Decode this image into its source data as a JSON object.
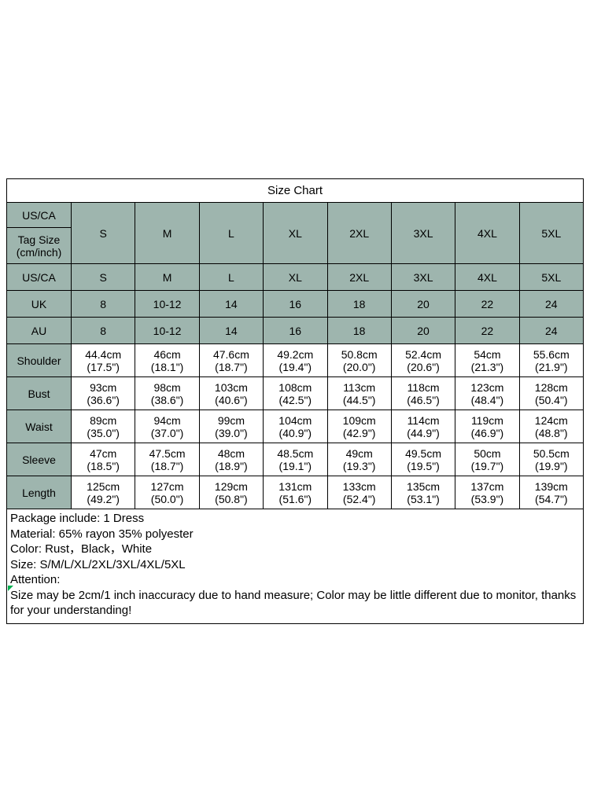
{
  "page": {
    "title": "Size Chart"
  },
  "size_chart": {
    "header": {
      "region_label": "US/CA",
      "tag_size_label": "Tag Size\n(cm/inch)",
      "sizes": [
        "S",
        "M",
        "L",
        "XL",
        "2XL",
        "3XL",
        "4XL",
        "5XL"
      ]
    },
    "rows": [
      {
        "label": "US/CA",
        "shaded": true,
        "values": [
          "S",
          "M",
          "L",
          "XL",
          "2XL",
          "3XL",
          "4XL",
          "5XL"
        ]
      },
      {
        "label": "UK",
        "shaded": true,
        "values": [
          "8",
          "10-12",
          "14",
          "16",
          "18",
          "20",
          "22",
          "24"
        ]
      },
      {
        "label": "AU",
        "shaded": true,
        "values": [
          "8",
          "10-12",
          "14",
          "16",
          "18",
          "20",
          "22",
          "24"
        ]
      },
      {
        "label": "Shoulder",
        "shaded": false,
        "values": [
          "44.4cm\n(17.5\")",
          "46cm\n(18.1\")",
          "47.6cm\n(18.7\")",
          "49.2cm\n(19.4\")",
          "50.8cm\n(20.0\")",
          "52.4cm\n(20.6\")",
          "54cm\n(21.3\")",
          "55.6cm\n(21.9\")"
        ]
      },
      {
        "label": "Bust",
        "shaded": false,
        "values": [
          "93cm\n(36.6\")",
          "98cm\n(38.6\")",
          "103cm\n(40.6\")",
          "108cm\n(42.5\")",
          "113cm\n(44.5\")",
          "118cm\n(46.5\")",
          "123cm\n(48.4\")",
          "128cm\n(50.4\")"
        ]
      },
      {
        "label": "Waist",
        "shaded": false,
        "values": [
          "89cm\n(35.0\")",
          "94cm\n(37.0\")",
          "99cm\n(39.0\")",
          "104cm\n(40.9\")",
          "109cm\n(42.9\")",
          "114cm\n(44.9\")",
          "119cm\n(46.9\")",
          "124cm\n(48.8\")"
        ]
      },
      {
        "label": "Sleeve",
        "shaded": false,
        "values": [
          "47cm\n(18.5\")",
          "47.5cm\n(18.7\")",
          "48cm\n(18.9\")",
          "48.5cm\n(19.1\")",
          "49cm\n(19.3\")",
          "49.5cm\n(19.5\")",
          "50cm\n(19.7\")",
          "50.5cm\n(19.9\")"
        ]
      },
      {
        "label": "Length",
        "shaded": false,
        "values": [
          "125cm\n(49.2\")",
          "127cm\n(50.0\")",
          "129cm\n(50.8\")",
          "131cm\n(51.6\")",
          "133cm\n(52.4\")",
          "135cm\n(53.1\")",
          "137cm\n(53.9\")",
          "139cm\n(54.7\")"
        ]
      }
    ]
  },
  "notes": {
    "lines": [
      "Package include: 1  Dress",
      "Material:  65% rayon 35% polyester",
      "Color:  Rust，Black，White",
      "Size: S/M/L/XL/2XL/3XL/4XL/5XL",
      "Attention:",
      "Size may be 2cm/1 inch inaccuracy due to hand measure; Color may be little different due to monitor, thanks for your understanding!"
    ]
  },
  "colors": {
    "header_green": "#9eb5ae",
    "border": "#000000",
    "marker_green": "#00b050"
  }
}
